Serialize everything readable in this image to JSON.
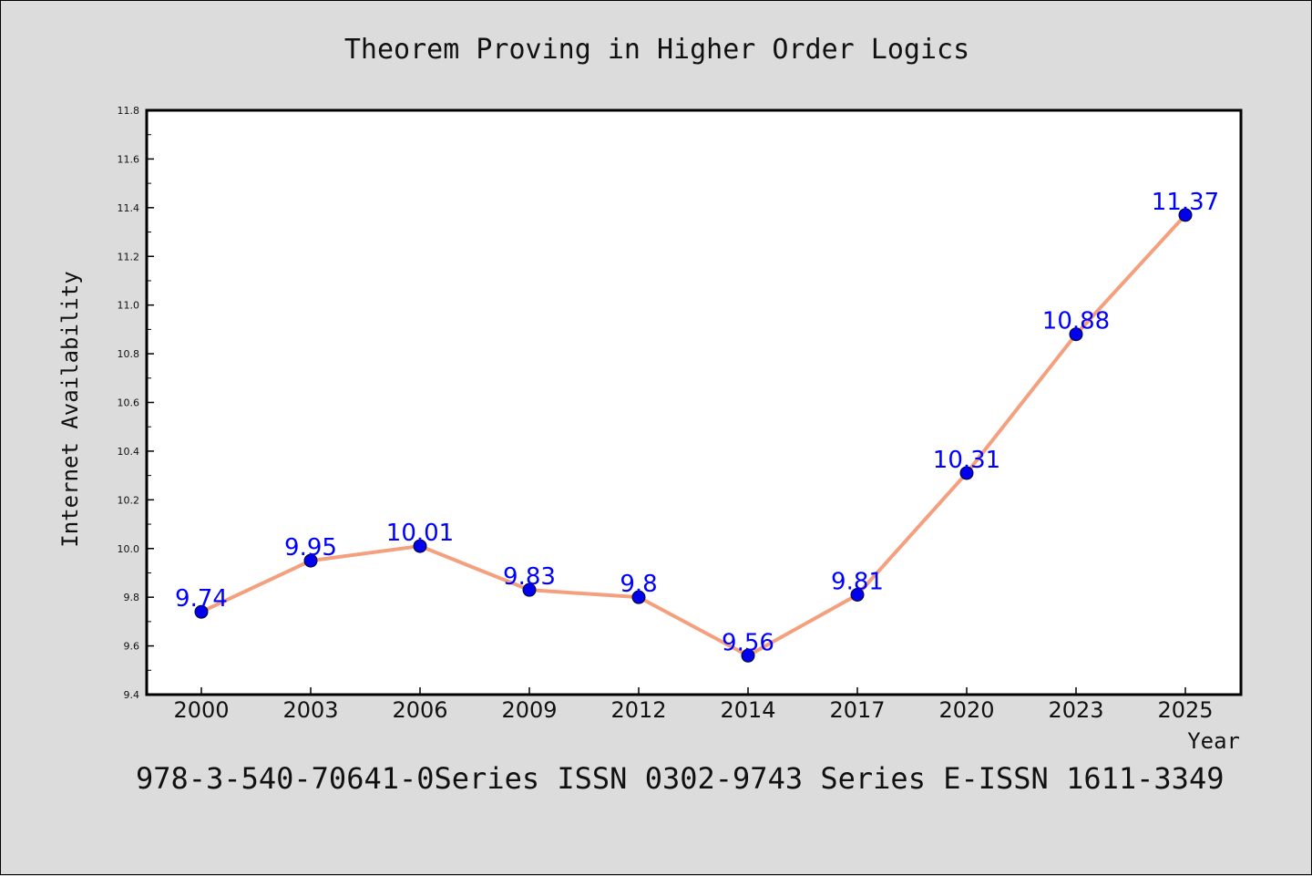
{
  "chart_data": {
    "type": "line",
    "title": "Theorem Proving in Higher Order Logics",
    "xlabel": "Year",
    "ylabel": "Internet Availability",
    "categories": [
      "2000",
      "2003",
      "2006",
      "2009",
      "2012",
      "2014",
      "2017",
      "2020",
      "2023",
      "2025"
    ],
    "series": [
      {
        "values": [
          9.74,
          9.95,
          10.01,
          9.83,
          9.8,
          9.56,
          9.81,
          10.31,
          10.88,
          11.37
        ]
      }
    ],
    "data_labels": [
      "9.74",
      "9.95",
      "10.01",
      "9.83",
      "9.8",
      "9.56",
      "9.81",
      "10.31",
      "10.88",
      "11.37"
    ],
    "ylim": [
      9.4,
      11.8
    ],
    "yticks": [
      "9.4",
      "9.6",
      "9.8",
      "10.0",
      "10.2",
      "10.4",
      "10.6",
      "10.8",
      "11.0",
      "11.2",
      "11.4",
      "11.6",
      "11.8"
    ],
    "grid": false,
    "line_color": "#f4a07e",
    "marker_color": "#0000ee",
    "label_color": "#0000ff",
    "background_color": "#dcdcdc",
    "plot_background_color": "#ffffff"
  },
  "caption": "978-3-540-70641-0Series ISSN 0302-9743 Series E-ISSN 1611-3349"
}
